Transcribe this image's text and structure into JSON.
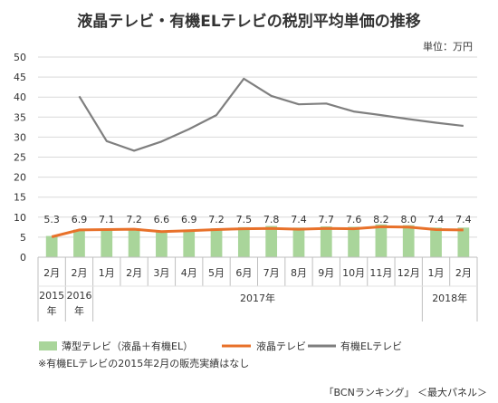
{
  "chart_data": {
    "type": "bar",
    "title": "液晶テレビ・有機ELテレビの税別平均単価の推移",
    "unit_label": "単位：万円",
    "ylim": [
      0,
      50
    ],
    "yticks": [
      0,
      5,
      10,
      15,
      20,
      25,
      30,
      35,
      40,
      45,
      50
    ],
    "grid": true,
    "categories": [
      "2月",
      "2月",
      "1月",
      "2月",
      "3月",
      "4月",
      "5月",
      "6月",
      "7月",
      "8月",
      "9月",
      "10月",
      "11月",
      "12月",
      "1月",
      "2月"
    ],
    "year_groups": [
      {
        "label": "2015年",
        "start": 0,
        "end": 0
      },
      {
        "label": "2016年",
        "start": 1,
        "end": 1
      },
      {
        "label": "2017年",
        "start": 2,
        "end": 13
      },
      {
        "label": "2018年",
        "start": 14,
        "end": 15
      }
    ],
    "series": [
      {
        "name": "薄型テレビ（液晶＋有機EL）",
        "type": "bar",
        "color": "#a9d59a",
        "values": [
          5.3,
          6.9,
          7.1,
          7.2,
          6.6,
          6.9,
          7.2,
          7.5,
          7.8,
          7.4,
          7.7,
          7.6,
          8.2,
          8.0,
          7.4,
          7.4
        ]
      },
      {
        "name": "液晶テレビ",
        "type": "line",
        "color": "#e8712a",
        "values": [
          5.1,
          6.8,
          6.9,
          7.0,
          6.4,
          6.6,
          6.9,
          7.1,
          7.2,
          7.0,
          7.2,
          7.1,
          7.6,
          7.5,
          6.9,
          6.8
        ]
      },
      {
        "name": "有機ELテレビ",
        "type": "line",
        "color": "#7f7f7f",
        "values": [
          null,
          40.2,
          29.0,
          26.6,
          28.9,
          32.0,
          35.5,
          44.6,
          40.3,
          38.2,
          38.4,
          36.4,
          35.5,
          34.5,
          33.6,
          32.8
        ]
      }
    ],
    "data_labels": [
      "5.3",
      "6.9",
      "7.1",
      "7.2",
      "6.6",
      "6.9",
      "7.2",
      "7.5",
      "7.8",
      "7.4",
      "7.7",
      "7.6",
      "8.2",
      "8.0",
      "7.4",
      "7.4"
    ],
    "legend_position": "bottom-left"
  },
  "footnote": "※有機ELテレビの2015年2月の販売実績はなし",
  "source": "「BCNランキング」 ＜最大パネル＞"
}
